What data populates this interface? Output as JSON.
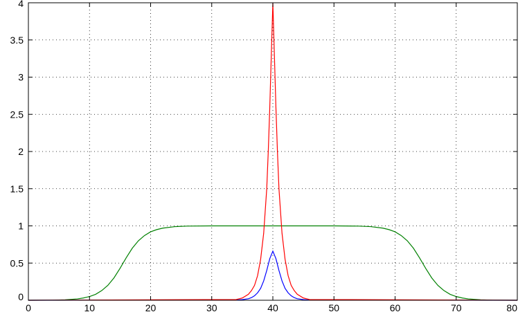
{
  "chart_data": {
    "type": "line",
    "title": "",
    "xlabel": "",
    "ylabel": "",
    "xlim": [
      0,
      80
    ],
    "ylim": [
      0,
      4
    ],
    "grid": true,
    "x_ticks": [
      0,
      10,
      20,
      30,
      40,
      50,
      60,
      70,
      80
    ],
    "x_tick_labels": [
      "0",
      "10",
      "20",
      "30",
      "40",
      "50",
      "60",
      "70",
      "80"
    ],
    "y_ticks": [
      0,
      0.5,
      1,
      1.5,
      2,
      2.5,
      3,
      3.5,
      4
    ],
    "y_tick_labels": [
      "0",
      "0.5",
      "1",
      "1.5",
      "2",
      "2.5",
      "3",
      "3.5",
      "4"
    ],
    "series": [
      {
        "color": "#008000",
        "x": [
          0,
          4,
          6,
          8,
          9,
          10,
          11,
          12,
          13,
          14,
          15,
          16,
          17,
          18,
          19,
          20,
          21,
          22,
          24,
          26,
          30,
          40,
          50,
          54,
          56,
          58,
          59,
          60,
          61,
          62,
          63,
          64,
          65,
          66,
          67,
          68,
          69,
          70,
          71,
          72,
          74,
          76,
          80
        ],
        "values": [
          0.0,
          0.002,
          0.006,
          0.018,
          0.03,
          0.05,
          0.08,
          0.13,
          0.2,
          0.3,
          0.43,
          0.57,
          0.7,
          0.8,
          0.87,
          0.92,
          0.95,
          0.97,
          0.99,
          0.997,
          1.0,
          1.0,
          1.0,
          0.997,
          0.99,
          0.97,
          0.95,
          0.92,
          0.87,
          0.8,
          0.7,
          0.57,
          0.43,
          0.3,
          0.2,
          0.13,
          0.08,
          0.05,
          0.03,
          0.018,
          0.006,
          0.002,
          0.0
        ]
      },
      {
        "color": "#0000ff",
        "x": [
          0,
          34,
          35,
          36,
          36.5,
          37,
          37.5,
          38,
          38.5,
          39,
          39.5,
          40,
          40.5,
          41,
          41.5,
          42,
          42.5,
          43,
          43.5,
          44,
          45,
          46,
          80
        ],
        "values": [
          0.0,
          0.003,
          0.008,
          0.02,
          0.035,
          0.06,
          0.1,
          0.16,
          0.26,
          0.4,
          0.56,
          0.66,
          0.56,
          0.4,
          0.26,
          0.16,
          0.1,
          0.06,
          0.035,
          0.02,
          0.008,
          0.003,
          0.0
        ]
      },
      {
        "color": "#ff0000",
        "x": [
          0,
          34,
          35,
          36,
          36.5,
          37,
          37.5,
          38,
          38.5,
          39,
          39.25,
          39.5,
          39.75,
          40,
          40.25,
          40.5,
          40.75,
          41,
          41.5,
          42,
          42.5,
          43,
          43.5,
          44,
          45,
          46,
          80
        ],
        "values": [
          0.0,
          0.01,
          0.03,
          0.08,
          0.13,
          0.2,
          0.33,
          0.55,
          0.9,
          1.5,
          2.0,
          2.6,
          3.3,
          4.0,
          3.3,
          2.6,
          2.0,
          1.5,
          0.9,
          0.55,
          0.33,
          0.2,
          0.13,
          0.08,
          0.03,
          0.01,
          0.0
        ]
      }
    ]
  }
}
